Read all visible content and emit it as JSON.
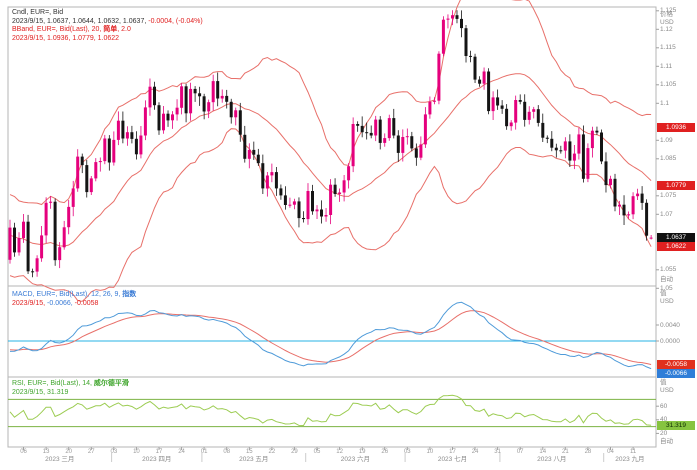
{
  "colors": {
    "up_candle": "#e5007d",
    "down_candle": "#141414",
    "bband_line": "#e8706a",
    "macd_line": "#4f9bd9",
    "signal_line": "#e8706a",
    "zero_line": "#27b3e6",
    "rsi_line": "#9ccc52",
    "rsi_guide": "#7cb342",
    "pane_border": "#b5b5b5",
    "tick": "#a0a0a0",
    "badge_red": "#e02020",
    "badge_black": "#111111",
    "badge_blue": "#2f7ed8",
    "badge_green": "#86c440"
  },
  "price_pane": {
    "axis_title": "价格",
    "axis_unit": "USD",
    "auto_label": "自动",
    "legend": {
      "line1": "Cndl, EUR=, Bid",
      "line2_ohlc": "2023/9/15, 1.0637, 1.0644, 1.0632, 1.0637, ",
      "line2_change": "-0.0004, (-0.04%)",
      "line3_pre": "BBand, EUR=, Bid(Last), 20, ",
      "line3_matype": "简单",
      "line3_post": ", 2.0",
      "line4": "2023/9/15, 1.0936, 1.0779, 1.0622"
    },
    "ticks": [
      {
        "label": "1.125",
        "v": 1.125
      },
      {
        "label": "1.12",
        "v": 1.12
      },
      {
        "label": "1.115",
        "v": 1.115
      },
      {
        "label": "1.11",
        "v": 1.11
      },
      {
        "label": "1.105",
        "v": 1.105
      },
      {
        "label": "1.1",
        "v": 1.1
      },
      {
        "label": "1.09",
        "v": 1.09
      },
      {
        "label": "1.085",
        "v": 1.085
      },
      {
        "label": "1.075",
        "v": 1.075
      },
      {
        "label": "1.07",
        "v": 1.07
      },
      {
        "label": "1.055",
        "v": 1.055
      },
      {
        "label": "1.05",
        "v": 1.05
      }
    ],
    "badges": [
      {
        "name": "bband-upper-badge",
        "label": "1.0936",
        "value": 1.0936,
        "kind": "band"
      },
      {
        "name": "bband-middle-badge",
        "label": "1.0779",
        "value": 1.0779,
        "kind": "band"
      },
      {
        "name": "last-price-badge",
        "label": "1.0637",
        "value": 1.0637,
        "kind": "last"
      },
      {
        "name": "bband-lower-badge",
        "label": "1.0622",
        "value": 1.0622,
        "kind": "band"
      }
    ]
  },
  "macd_pane": {
    "axis_title": "值",
    "axis_unit": "USD",
    "legend": {
      "line1_pre": "MACD, EUR=, Bid(Last), 12, 26, 9, ",
      "line1_type": "指数",
      "line2_date": "2023/9/15, ",
      "line2_macd": "-0.0066, ",
      "line2_signal": "-0.0058"
    },
    "ticks": [
      {
        "label": "0.0040",
        "v": 0.004
      },
      {
        "label": "0.0000",
        "v": 0.0
      }
    ],
    "badges": [
      {
        "name": "macd-signal-badge",
        "label": "-0.0058",
        "value": -0.0058,
        "kind": "signal"
      },
      {
        "name": "macd-line-badge",
        "label": "-0.0066",
        "value": -0.0066,
        "kind": "macd"
      }
    ]
  },
  "rsi_pane": {
    "axis_title": "值",
    "axis_unit": "USD",
    "auto_label": "自动",
    "legend": {
      "line1_pre": "RSI, EUR=, Bid(Last), 14, ",
      "line1_type": "威尔德平滑",
      "line2": "2023/9/15, 31.319"
    },
    "ticks": [
      {
        "label": "60",
        "v": 60
      },
      {
        "label": "40",
        "v": 40
      },
      {
        "label": "20",
        "v": 20
      }
    ],
    "guides": [
      70,
      30
    ],
    "badge": {
      "name": "rsi-value-badge",
      "label": "31.319",
      "value": 31.319,
      "kind": "rsi"
    }
  },
  "x_axis": {
    "week_ticks": [
      {
        "i": 3,
        "label": "06"
      },
      {
        "i": 8,
        "label": "13"
      },
      {
        "i": 13,
        "label": "20"
      },
      {
        "i": 18,
        "label": "27"
      },
      {
        "i": 23,
        "label": "03"
      },
      {
        "i": 28,
        "label": "10"
      },
      {
        "i": 33,
        "label": "17"
      },
      {
        "i": 38,
        "label": "24"
      },
      {
        "i": 43,
        "label": "01"
      },
      {
        "i": 48,
        "label": "08"
      },
      {
        "i": 53,
        "label": "15"
      },
      {
        "i": 58,
        "label": "22"
      },
      {
        "i": 63,
        "label": "29"
      },
      {
        "i": 68,
        "label": "05"
      },
      {
        "i": 73,
        "label": "12"
      },
      {
        "i": 78,
        "label": "19"
      },
      {
        "i": 83,
        "label": "26"
      },
      {
        "i": 88,
        "label": "03"
      },
      {
        "i": 93,
        "label": "10"
      },
      {
        "i": 98,
        "label": "17"
      },
      {
        "i": 103,
        "label": "24"
      },
      {
        "i": 108,
        "label": "31"
      },
      {
        "i": 113,
        "label": "07"
      },
      {
        "i": 118,
        "label": "14"
      },
      {
        "i": 123,
        "label": "21"
      },
      {
        "i": 128,
        "label": "28"
      },
      {
        "i": 133,
        "label": "04"
      },
      {
        "i": 138,
        "label": "11"
      }
    ],
    "months": [
      {
        "label": "2023 三月",
        "from": 0,
        "to": 22
      },
      {
        "label": "2023 四月",
        "from": 23,
        "to": 42
      },
      {
        "label": "2023 五月",
        "from": 43,
        "to": 65
      },
      {
        "label": "2023 六月",
        "from": 66,
        "to": 87
      },
      {
        "label": "2023 七月",
        "from": 88,
        "to": 108
      },
      {
        "label": "2023 八月",
        "from": 109,
        "to": 131
      },
      {
        "label": "2023 九月",
        "from": 132,
        "to": 142
      }
    ]
  },
  "chart_data": {
    "type": "candlestick",
    "symbol": "EUR=",
    "price_field": "Bid",
    "interval": "daily",
    "x_range": "2023-03-01 to 2023-09-15",
    "y_range_price": [
      1.049,
      1.127
    ],
    "last_candle": {
      "date": "2023/9/15",
      "open": 1.0637,
      "high": 1.0644,
      "low": 1.0632,
      "close": 1.0637,
      "change": -0.0004,
      "change_pct": "-0.04%"
    },
    "indicators": {
      "bollinger": {
        "period": 20,
        "ma_type": "简单",
        "stdev_mult": 2.0,
        "upper": 1.0936,
        "middle": 1.0779,
        "lower": 1.0622
      },
      "macd": {
        "fast": 12,
        "slow": 26,
        "signal": 9,
        "ma_type": "指数",
        "macd_value": -0.0066,
        "signal_value": -0.0058
      },
      "rsi": {
        "period": 14,
        "smoothing": "威尔德平滑",
        "value": 31.319,
        "guides": [
          70,
          30
        ]
      }
    },
    "pre_closes": [
      1.0691,
      1.0725,
      1.07,
      1.0678,
      1.0655,
      1.062,
      1.0673,
      1.0672,
      1.0679,
      1.0674,
      1.0696,
      1.0679,
      1.0658,
      1.0613,
      1.0578,
      1.0563,
      1.0548,
      1.0533,
      1.0577
    ],
    "closes": [
      1.0664,
      1.0597,
      1.0636,
      1.068,
      1.0546,
      1.0545,
      1.0581,
      1.0643,
      1.0731,
      1.0734,
      1.0576,
      1.0611,
      1.0665,
      1.072,
      1.077,
      1.0856,
      1.0833,
      1.076,
      1.0797,
      1.0841,
      1.0844,
      1.0905,
      1.084,
      1.0901,
      1.0953,
      1.0905,
      1.0922,
      1.0904,
      1.0862,
      1.0913,
      1.0989,
      1.1045,
      1.0995,
      1.0927,
      1.0972,
      1.0954,
      1.097,
      1.0988,
      1.1046,
      1.0973,
      1.1039,
      1.1027,
      1.1019,
      1.0978,
      1.1003,
      1.106,
      1.1013,
      1.102,
      1.1004,
      1.0962,
      1.0981,
      1.0915,
      1.085,
      1.0874,
      1.0861,
      1.0838,
      1.077,
      1.0805,
      1.0814,
      1.077,
      1.0751,
      1.0725,
      1.0726,
      1.0735,
      1.069,
      1.0687,
      1.0763,
      1.0708,
      1.0713,
      1.0694,
      1.0698,
      1.078,
      1.0755,
      1.0759,
      1.0792,
      1.083,
      1.0944,
      1.0939,
      1.0922,
      1.092,
      1.0913,
      1.0956,
      1.0893,
      1.0906,
      1.096,
      1.0913,
      1.0866,
      1.0909,
      1.0911,
      1.0878,
      1.0853,
      1.0889,
      1.097,
      1.1004,
      1.1007,
      1.1134,
      1.1226,
      1.1229,
      1.1238,
      1.1228,
      1.1203,
      1.1128,
      1.1126,
      1.1064,
      1.1053,
      1.1086,
      1.0979,
      1.1016,
      1.0994,
      1.0985,
      1.0938,
      1.0948,
      1.1009,
      1.1004,
      1.0955,
      1.0977,
      1.0984,
      1.0947,
      1.0907,
      1.0904,
      1.088,
      1.0873,
      1.0872,
      1.0897,
      1.0845,
      1.0864,
      1.0916,
      1.0796,
      1.0879,
      1.0926,
      1.0921,
      1.0843,
      1.0779,
      1.0796,
      1.0721,
      1.0726,
      1.0697,
      1.07,
      1.0749,
      1.0756,
      1.0731,
      1.0642,
      1.0637
    ]
  }
}
